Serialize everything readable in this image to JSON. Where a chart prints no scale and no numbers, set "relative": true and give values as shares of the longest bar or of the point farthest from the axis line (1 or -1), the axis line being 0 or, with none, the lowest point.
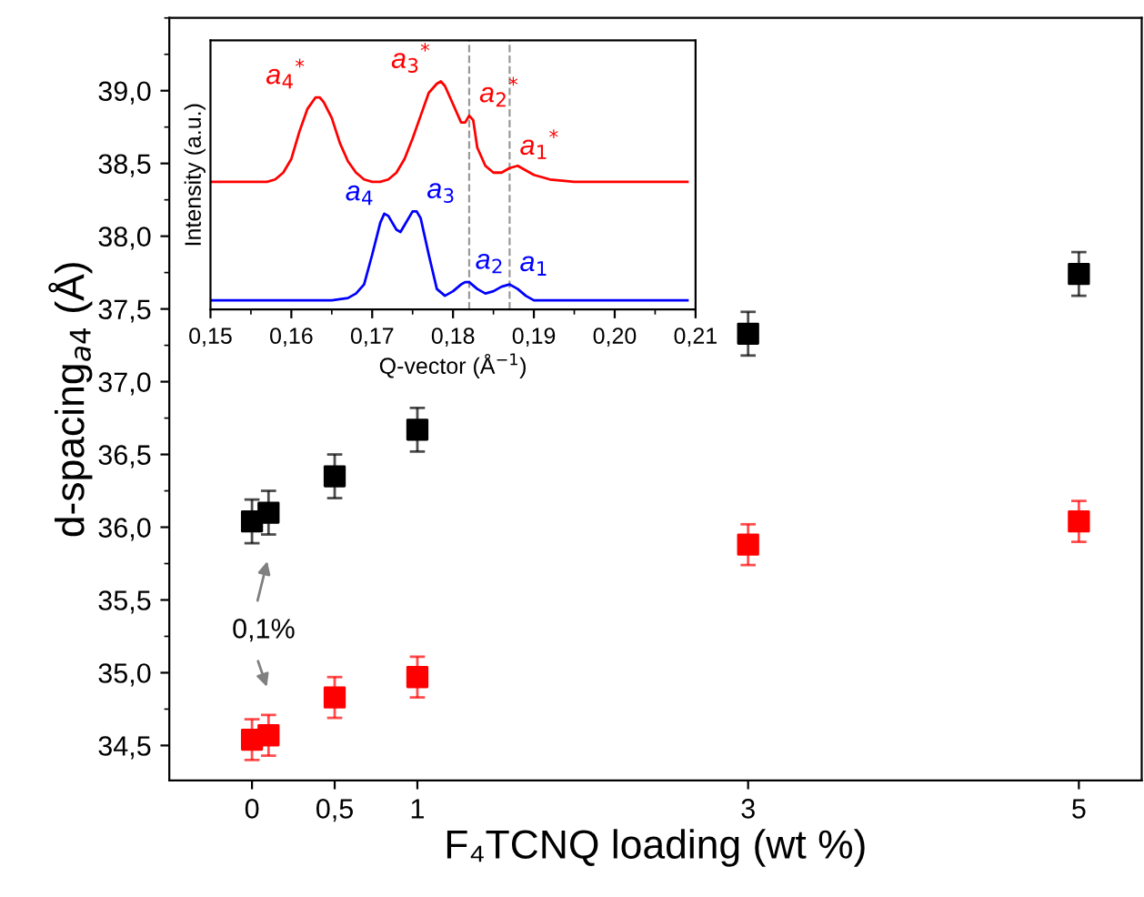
{
  "chart_data": [
    {
      "type": "scatter",
      "xlabel": "F₄TCNQ loading (wt %)",
      "ylabel": "d-spacing$_{a4}$ (Å)",
      "x": [
        0,
        0.1,
        0.5,
        1,
        3,
        5
      ],
      "series": [
        {
          "color": "#000000",
          "values": [
            36.04,
            36.1,
            36.35,
            36.67,
            37.33,
            37.74
          ],
          "errors": [
            0.15,
            0.15,
            0.15,
            0.15,
            0.15,
            0.15
          ]
        },
        {
          "color": "#ff0000",
          "values": [
            34.54,
            34.57,
            34.83,
            34.97,
            35.88,
            36.04
          ],
          "errors": [
            0.14,
            0.14,
            0.14,
            0.14,
            0.14,
            0.14
          ]
        }
      ],
      "marker": "square",
      "xlim": [
        -0.5,
        5.38
      ],
      "ylim": [
        34.26,
        39.5
      ],
      "xticks": [
        0,
        {
          "value": 0.5,
          "label": "0,5"
        },
        1,
        3,
        5
      ],
      "yticks": [
        {
          "value": 34.5,
          "label": "34,5"
        },
        {
          "value": 35.0,
          "label": "35,0"
        },
        {
          "value": 35.5,
          "label": "35,5"
        },
        {
          "value": 36.0,
          "label": "36,0"
        },
        {
          "value": 36.5,
          "label": "36,5"
        },
        {
          "value": 37.0,
          "label": "37,0"
        },
        {
          "value": 37.5,
          "label": "37,5"
        },
        {
          "value": 38.0,
          "label": "38,0"
        },
        {
          "value": 38.5,
          "label": "38,5"
        },
        {
          "value": 39.0,
          "label": "39,0"
        }
      ],
      "annotations": [
        "0,1%"
      ],
      "grid": false
    },
    {
      "type": "line",
      "relative": true,
      "xlabel": "Q-vector (Å$^{−1}$)",
      "ylabel": "Intensity (a.u.)",
      "series": [
        {
          "color": "#ff0000",
          "x": [
            0.15,
            0.155,
            0.157,
            0.158,
            0.159,
            0.16,
            0.161,
            0.162,
            0.163,
            0.1635,
            0.164,
            0.165,
            0.166,
            0.167,
            0.168,
            0.169,
            0.17,
            0.171,
            0.172,
            0.173,
            0.174,
            0.175,
            0.176,
            0.177,
            0.178,
            0.1785,
            0.179,
            0.18,
            0.181,
            0.1815,
            0.182,
            0.1825,
            0.183,
            0.184,
            0.185,
            0.186,
            0.187,
            0.188,
            0.189,
            0.19,
            0.192,
            0.195,
            0.2,
            0.209
          ],
          "values": [
            0.56,
            0.56,
            0.56,
            0.57,
            0.6,
            0.66,
            0.78,
            0.88,
            0.93,
            0.93,
            0.91,
            0.84,
            0.73,
            0.65,
            0.6,
            0.57,
            0.56,
            0.56,
            0.57,
            0.6,
            0.66,
            0.75,
            0.85,
            0.95,
            0.99,
            1.0,
            0.98,
            0.9,
            0.82,
            0.82,
            0.85,
            0.83,
            0.71,
            0.63,
            0.6,
            0.6,
            0.62,
            0.63,
            0.61,
            0.59,
            0.57,
            0.56,
            0.56,
            0.56
          ]
        },
        {
          "color": "#0000ff",
          "x": [
            0.15,
            0.16,
            0.165,
            0.167,
            0.168,
            0.169,
            0.17,
            0.171,
            0.1715,
            0.172,
            0.173,
            0.1735,
            0.174,
            0.175,
            0.1755,
            0.176,
            0.177,
            0.178,
            0.179,
            0.18,
            0.181,
            0.1815,
            0.182,
            0.183,
            0.184,
            0.185,
            0.186,
            0.187,
            0.188,
            0.189,
            0.19,
            0.192,
            0.209
          ],
          "values": [
            0.04,
            0.04,
            0.04,
            0.05,
            0.07,
            0.11,
            0.24,
            0.38,
            0.42,
            0.41,
            0.35,
            0.34,
            0.37,
            0.43,
            0.43,
            0.4,
            0.24,
            0.09,
            0.06,
            0.08,
            0.11,
            0.12,
            0.12,
            0.09,
            0.07,
            0.08,
            0.1,
            0.11,
            0.09,
            0.06,
            0.04,
            0.04,
            0.04
          ]
        }
      ],
      "marker": "none",
      "line_style": "solid",
      "xlim": [
        0.15,
        0.21
      ],
      "xticks": [
        {
          "value": 0.15,
          "label": "0,15"
        },
        {
          "value": 0.16,
          "label": "0,16"
        },
        {
          "value": 0.17,
          "label": "0,17"
        },
        {
          "value": 0.18,
          "label": "0,18"
        },
        {
          "value": 0.19,
          "label": "0,19"
        },
        {
          "value": 0.2,
          "label": "0,20"
        },
        {
          "value": 0.21,
          "label": "0,21"
        }
      ],
      "tick_labels": "x",
      "ref_lines": [
        {
          "axis": "x",
          "value": 0.182,
          "color": "#999999",
          "line_style": "dashed"
        },
        {
          "axis": "x",
          "value": 0.187,
          "color": "#999999",
          "line_style": "dashed"
        }
      ],
      "annotations": [
        {
          "text": "a$_{4}$$^{*}$",
          "x": 0.163,
          "y": 0.93
        },
        {
          "text": "a$_{3}$$^{*}$",
          "x": 0.1785,
          "y": 1.0
        },
        {
          "text": "a$_{2}$$^{*}$",
          "x": 0.182,
          "y": 0.85
        },
        {
          "text": "a$_{1}$$^{*}$",
          "x": 0.187,
          "y": 0.62
        },
        {
          "text": "a$_{4}$",
          "x": 0.1715,
          "y": 0.42
        },
        {
          "text": "a$_{3}$",
          "x": 0.1755,
          "y": 0.43
        },
        {
          "text": "a$_{2}$",
          "x": 0.1815,
          "y": 0.12
        },
        {
          "text": "a$_{1}$",
          "x": 0.187,
          "y": 0.11
        }
      ],
      "grid": false
    }
  ]
}
